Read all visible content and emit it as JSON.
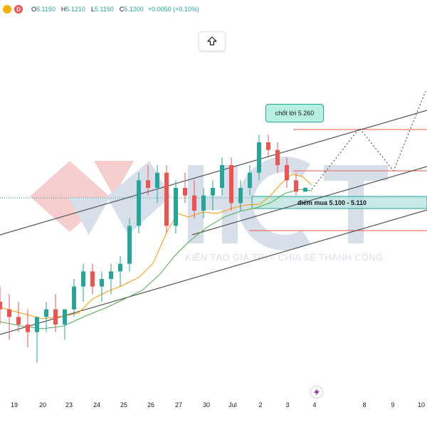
{
  "header": {
    "interval": "D",
    "open_label": "O",
    "open": "5.1150",
    "high_label": "H",
    "high": "5.1210",
    "low_label": "L",
    "low": "5.1150",
    "close_label": "C",
    "close": "5.1200",
    "change": "+0.0050 (+0.10%)"
  },
  "watermark": {
    "logo": "HCT",
    "slogan": "KIẾN TẠO GIÁ TRỊ – CHIA SẺ THÀNH CÔNG"
  },
  "annotations": {
    "take_profit": "chốt lời 5.260",
    "buy_zone": "điểm mua 5.100 - 5.110"
  },
  "icons": {
    "scroll_up": "scroll-up-arrow-icon",
    "lightning": "lightning-icon"
  },
  "colors": {
    "up": "#26a69a",
    "down": "#ef5350",
    "ma_fast": "#ff9800",
    "ma_slow": "#4caf50",
    "zone_fill": "#b2dfdb",
    "watermark_red": "#e57373",
    "watermark_blue": "#90a4c8"
  },
  "chart_data": {
    "type": "candlestick",
    "x_ticks": [
      "19",
      "20",
      "23",
      "24",
      "25",
      "26",
      "27",
      "30",
      "Jul",
      "2",
      "3",
      "4",
      "8",
      "9",
      "10"
    ],
    "candles_approx": [
      {
        "o": 4.97,
        "h": 4.99,
        "l": 4.94,
        "c": 4.96
      },
      {
        "o": 4.96,
        "h": 4.98,
        "l": 4.92,
        "c": 4.95
      },
      {
        "o": 4.95,
        "h": 4.97,
        "l": 4.93,
        "c": 4.94
      },
      {
        "o": 4.94,
        "h": 4.96,
        "l": 4.91,
        "c": 4.93
      },
      {
        "o": 4.93,
        "h": 4.95,
        "l": 4.89,
        "c": 4.95
      },
      {
        "o": 4.95,
        "h": 4.97,
        "l": 4.93,
        "c": 4.96
      },
      {
        "o": 4.96,
        "h": 4.98,
        "l": 4.93,
        "c": 4.94
      },
      {
        "o": 4.94,
        "h": 4.96,
        "l": 4.92,
        "c": 4.96
      },
      {
        "o": 4.96,
        "h": 5.0,
        "l": 4.95,
        "c": 4.99
      },
      {
        "o": 4.99,
        "h": 5.02,
        "l": 4.97,
        "c": 5.01
      },
      {
        "o": 5.01,
        "h": 5.02,
        "l": 4.98,
        "c": 4.99
      },
      {
        "o": 4.99,
        "h": 5.01,
        "l": 4.97,
        "c": 5.0
      },
      {
        "o": 5.0,
        "h": 5.02,
        "l": 4.98,
        "c": 5.01
      },
      {
        "o": 5.01,
        "h": 5.03,
        "l": 4.99,
        "c": 5.02
      },
      {
        "o": 5.02,
        "h": 5.08,
        "l": 5.01,
        "c": 5.07
      },
      {
        "o": 5.07,
        "h": 5.14,
        "l": 5.06,
        "c": 5.13
      },
      {
        "o": 5.13,
        "h": 5.15,
        "l": 5.11,
        "c": 5.12
      },
      {
        "o": 5.12,
        "h": 5.15,
        "l": 5.1,
        "c": 5.14
      },
      {
        "o": 5.14,
        "h": 5.15,
        "l": 5.06,
        "c": 5.07
      },
      {
        "o": 5.07,
        "h": 5.13,
        "l": 5.06,
        "c": 5.12
      },
      {
        "o": 5.12,
        "h": 5.14,
        "l": 5.1,
        "c": 5.11
      },
      {
        "o": 5.11,
        "h": 5.13,
        "l": 5.08,
        "c": 5.09
      },
      {
        "o": 5.09,
        "h": 5.12,
        "l": 5.08,
        "c": 5.11
      },
      {
        "o": 5.11,
        "h": 5.13,
        "l": 5.09,
        "c": 5.12
      },
      {
        "o": 5.12,
        "h": 5.16,
        "l": 5.11,
        "c": 5.15
      },
      {
        "o": 5.15,
        "h": 5.16,
        "l": 5.09,
        "c": 5.1
      },
      {
        "o": 5.1,
        "h": 5.13,
        "l": 5.09,
        "c": 5.12
      },
      {
        "o": 5.12,
        "h": 5.15,
        "l": 5.11,
        "c": 5.14
      },
      {
        "o": 5.14,
        "h": 5.19,
        "l": 5.13,
        "c": 5.18
      },
      {
        "o": 5.18,
        "h": 5.19,
        "l": 5.16,
        "c": 5.17
      },
      {
        "o": 5.17,
        "h": 5.18,
        "l": 5.14,
        "c": 5.15
      },
      {
        "o": 5.15,
        "h": 5.16,
        "l": 5.12,
        "c": 5.13
      },
      {
        "o": 5.13,
        "h": 5.14,
        "l": 5.11,
        "c": 5.115
      },
      {
        "o": 5.115,
        "h": 5.121,
        "l": 5.115,
        "c": 5.12
      }
    ],
    "levels": {
      "take_profit": 5.26,
      "buy_zone": [
        5.1,
        5.11
      ]
    },
    "ylim": [
      4.88,
      5.33
    ]
  }
}
